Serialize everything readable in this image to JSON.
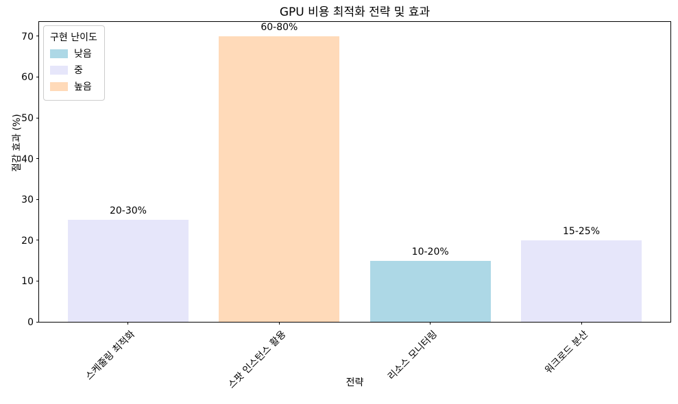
{
  "chart_data": {
    "type": "bar",
    "title": "GPU 비용 최적화 전략 및 효과",
    "xlabel": "전략",
    "ylabel": "절감 효과 (%)",
    "categories": [
      "스케줄링 최적화",
      "스팟 인스턴스 활용",
      "리소스 모니터링",
      "워크로드 분산"
    ],
    "values": [
      25,
      70,
      15,
      20
    ],
    "bar_labels": [
      "20-30%",
      "60-80%",
      "10-20%",
      "15-25%"
    ],
    "bar_difficulty": [
      "중",
      "높음",
      "낮음",
      "중"
    ],
    "bar_colors": [
      "#e6e6fa",
      "#ffdab9",
      "#add8e6",
      "#e6e6fa"
    ],
    "bar_width_data_units": 0.8,
    "xlim": [
      -0.59,
      3.59
    ],
    "ylim": [
      0,
      73.5
    ],
    "yticks": [
      0,
      10,
      20,
      30,
      40,
      50,
      60,
      70
    ],
    "grid": false,
    "legend": {
      "title": "구현 난이도",
      "position": "upper left",
      "entries": [
        {
          "label": "낮음",
          "color": "#add8e6"
        },
        {
          "label": "중",
          "color": "#e6e6fa"
        },
        {
          "label": "높음",
          "color": "#ffdab9"
        }
      ]
    }
  }
}
